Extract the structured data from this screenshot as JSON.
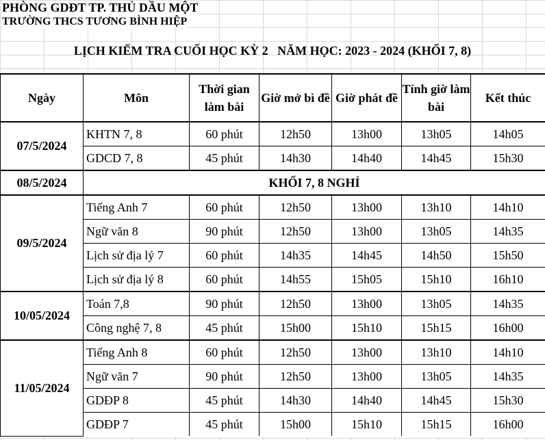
{
  "header": {
    "line1": "PHÒNG GDĐT TP. THỦ DẦU MỘT",
    "line2": "TRƯỜNG THCS TƯƠNG BÌNH HIỆP",
    "title": "LỊCH KIỂM TRA CUỐI HỌC KỲ 2   NĂM HỌC: 2023 - 2024 (KHỐI 7, 8)"
  },
  "columns": [
    "Ngày",
    "Môn",
    "Thời gian làm bài",
    "Giờ mở bì đề",
    "Giờ phát đề",
    "Tính giờ làm bài",
    "Kết thúc"
  ],
  "rows": [
    {
      "date": "07/5/2024",
      "subject": "KHTN 7, 8",
      "duration": "60 phút",
      "open": "12h50",
      "hand_out": "13h00",
      "start": "13h05",
      "end": "14h05"
    },
    {
      "subject": "GDCD 7, 8",
      "duration": "45 phút",
      "open": "14h30",
      "hand_out": "14h40",
      "start": "14h45",
      "end": "15h30"
    },
    {
      "date": "08/5/2024",
      "note": "KHỐI 7, 8 NGHỈ"
    },
    {
      "date": "09/5/2024",
      "subject": "Tiếng Anh 7",
      "duration": "60 phút",
      "open": "12h50",
      "hand_out": "13h00",
      "start": "13h10",
      "end": "14h10"
    },
    {
      "subject": "Ngữ văn 8",
      "duration": "90 phút",
      "open": "12h50",
      "hand_out": "13h00",
      "start": "13h05",
      "end": "14h35"
    },
    {
      "subject": "Lịch sử địa lý 7",
      "duration": "60 phút",
      "open": "14h35",
      "hand_out": "14h45",
      "start": "14h50",
      "end": "15h50"
    },
    {
      "subject": "Lịch sử địa lý 8",
      "duration": "60 phút",
      "open": "14h55",
      "hand_out": "15h05",
      "start": "15h10",
      "end": "16h10"
    },
    {
      "date": "10/05/2024",
      "subject": "Toán 7,8",
      "duration": "90 phút",
      "open": "12h50",
      "hand_out": "13h00",
      "start": "13h05",
      "end": "14h35"
    },
    {
      "subject": "Công nghệ 7, 8",
      "duration": "45 phút",
      "open": "15h00",
      "hand_out": "15h10",
      "start": "15h15",
      "end": "16h00"
    },
    {
      "date": "11/05/2024",
      "subject": "Tiếng Anh 8",
      "duration": "60 phút",
      "open": "12h50",
      "hand_out": "13h00",
      "start": "13h10",
      "end": "14h10"
    },
    {
      "subject": "Ngữ văn 7",
      "duration": "90 phút",
      "open": "12h50",
      "hand_out": "13h00",
      "start": "13h05",
      "end": "14h35"
    },
    {
      "subject": "GDĐP 8",
      "duration": "45 phút",
      "open": "14h30",
      "hand_out": "14h40",
      "start": "14h45",
      "end": "15h30"
    },
    {
      "subject": "GDĐP 7",
      "duration": "45 phút",
      "open": "15h00",
      "hand_out": "15h10",
      "start": "15h15",
      "end": "16h00"
    }
  ]
}
